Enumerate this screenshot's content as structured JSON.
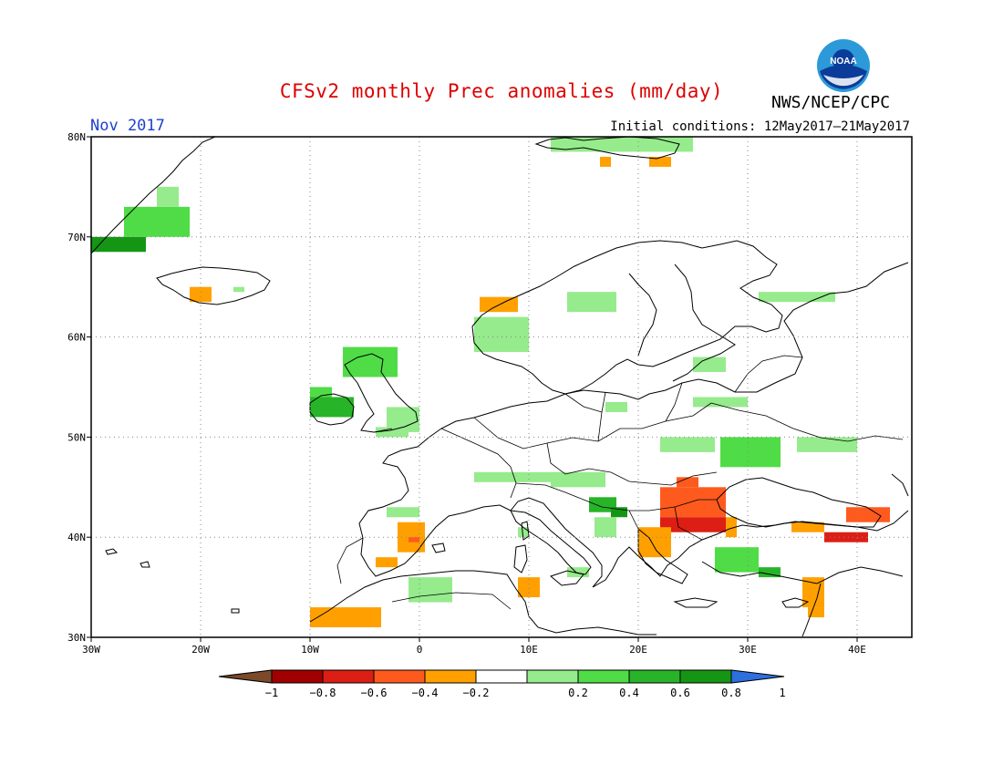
{
  "header": {
    "title": "CFSv2 monthly Prec anomalies (mm/day)",
    "month": "Nov 2017",
    "initial_conditions": "Initial conditions: 12May2017–21May2017",
    "org": "NWS/NCEP/CPC",
    "logo_text": "NOAA"
  },
  "colors": {
    "title": "#dd0000",
    "month": "#1f3fd0",
    "frame": "#000000",
    "coast": "#000000",
    "grid": "#888888"
  },
  "map": {
    "lon_range": [
      -30,
      45
    ],
    "lat_range": [
      30,
      80
    ],
    "lat_ticks": [
      {
        "value": 30,
        "label": "30N"
      },
      {
        "value": 40,
        "label": "40N"
      },
      {
        "value": 50,
        "label": "50N"
      },
      {
        "value": 60,
        "label": "60N"
      },
      {
        "value": 70,
        "label": "70N"
      },
      {
        "value": 80,
        "label": "80N"
      }
    ],
    "lon_ticks": [
      {
        "value": -30,
        "label": "30W"
      },
      {
        "value": -20,
        "label": "20W"
      },
      {
        "value": -10,
        "label": "10W"
      },
      {
        "value": 0,
        "label": "0"
      },
      {
        "value": 10,
        "label": "10E"
      },
      {
        "value": 20,
        "label": "20E"
      },
      {
        "value": 30,
        "label": "30E"
      },
      {
        "value": 40,
        "label": "40E"
      }
    ],
    "grid_dotted": true
  },
  "colorbar": {
    "bins": [
      {
        "from": -1.0,
        "to": -0.8,
        "color": "#a00000"
      },
      {
        "from": -0.8,
        "to": -0.6,
        "color": "#dc1e14"
      },
      {
        "from": -0.6,
        "to": -0.4,
        "color": "#ff5a1e"
      },
      {
        "from": -0.4,
        "to": -0.2,
        "color": "#ffa000"
      },
      {
        "from": -0.2,
        "to": 0.2,
        "color": "#ffffff"
      },
      {
        "from": 0.2,
        "to": 0.4,
        "color": "#96eb8c"
      },
      {
        "from": 0.4,
        "to": 0.6,
        "color": "#50dc46"
      },
      {
        "from": 0.6,
        "to": 0.8,
        "color": "#28b428"
      },
      {
        "from": 0.8,
        "to": 1.0,
        "color": "#149614"
      }
    ],
    "under_color": "#7a4a2a",
    "over_color": "#2e6fe0",
    "tick_labels": [
      "−1",
      "−0.8",
      "−0.6",
      "−0.4",
      "−0.2",
      "0.2",
      "0.4",
      "0.6",
      "0.8",
      "1"
    ]
  },
  "chart_data": {
    "type": "heatmap",
    "title": "CFSv2 monthly Prec anomalies (mm/day)",
    "units": "mm/day",
    "period": "Nov 2017",
    "anomaly_patches": [
      {
        "region": "E Greenland coast",
        "lon": [
          -30,
          -25
        ],
        "lat": [
          68.5,
          70
        ],
        "value": 0.9
      },
      {
        "region": "E Greenland coast",
        "lon": [
          -27,
          -21
        ],
        "lat": [
          70,
          73
        ],
        "value": 0.5
      },
      {
        "region": "E Greenland coast",
        "lon": [
          -24,
          -22
        ],
        "lat": [
          73,
          75
        ],
        "value": 0.3
      },
      {
        "region": "Iceland SW",
        "lon": [
          -21,
          -19
        ],
        "lat": [
          63.5,
          65
        ],
        "value": -0.3
      },
      {
        "region": "Iceland",
        "lon": [
          -17,
          -16
        ],
        "lat": [
          64.5,
          65
        ],
        "value": 0.3
      },
      {
        "region": "Svalbard",
        "lon": [
          12,
          25
        ],
        "lat": [
          78.5,
          80
        ],
        "value": 0.3
      },
      {
        "region": "Svalbard",
        "lon": [
          16.5,
          17.5
        ],
        "lat": [
          77,
          78
        ],
        "value": -0.3
      },
      {
        "region": "Svalbard",
        "lon": [
          21,
          23
        ],
        "lat": [
          77,
          78
        ],
        "value": -0.3
      },
      {
        "region": "W Norway",
        "lon": [
          5.5,
          9
        ],
        "lat": [
          62.5,
          64
        ],
        "value": -0.3
      },
      {
        "region": "W Norway",
        "lon": [
          5,
          10
        ],
        "lat": [
          58.5,
          62
        ],
        "value": 0.3
      },
      {
        "region": "Central Norway",
        "lon": [
          13.5,
          18
        ],
        "lat": [
          62.5,
          64.5
        ],
        "value": 0.3
      },
      {
        "region": "N Russia",
        "lon": [
          31,
          38
        ],
        "lat": [
          63.5,
          64.5
        ],
        "value": 0.3
      },
      {
        "region": "Ireland",
        "lon": [
          -10,
          -6
        ],
        "lat": [
          52,
          54
        ],
        "value": 0.7
      },
      {
        "region": "Ireland",
        "lon": [
          -10,
          -8
        ],
        "lat": [
          54,
          55
        ],
        "value": 0.5
      },
      {
        "region": "Scotland",
        "lon": [
          -7,
          -2
        ],
        "lat": [
          56,
          59
        ],
        "value": 0.4
      },
      {
        "region": "England",
        "lon": [
          -3,
          0
        ],
        "lat": [
          50.5,
          53
        ],
        "value": 0.3
      },
      {
        "region": "France NW",
        "lon": [
          -4,
          -1
        ],
        "lat": [
          50,
          51
        ],
        "value": 0.3
      },
      {
        "region": "Baltic",
        "lon": [
          25,
          28
        ],
        "lat": [
          56.5,
          58
        ],
        "value": 0.3
      },
      {
        "region": "Belarus",
        "lon": [
          25,
          30
        ],
        "lat": [
          53,
          54
        ],
        "value": 0.3
      },
      {
        "region": "Poland/Germany",
        "lon": [
          17,
          19
        ],
        "lat": [
          52.5,
          53.5
        ],
        "value": 0.3
      },
      {
        "region": "Ukraine",
        "lon": [
          22,
          27
        ],
        "lat": [
          48.5,
          50
        ],
        "value": 0.3
      },
      {
        "region": "Ukraine",
        "lon": [
          27.5,
          33
        ],
        "lat": [
          47,
          50
        ],
        "value": 0.4
      },
      {
        "region": "S Russia",
        "lon": [
          34.5,
          40
        ],
        "lat": [
          48.5,
          50
        ],
        "value": 0.3
      },
      {
        "region": "Balkans",
        "lon": [
          12,
          17
        ],
        "lat": [
          45,
          46.5
        ],
        "value": 0.3
      },
      {
        "region": "Adriatic",
        "lon": [
          15.5,
          18
        ],
        "lat": [
          42.5,
          44
        ],
        "value": 0.6
      },
      {
        "region": "Albania",
        "lon": [
          17.5,
          19
        ],
        "lat": [
          42,
          43
        ],
        "value": 0.95
      },
      {
        "region": "Romania/Bulgaria",
        "lon": [
          22,
          28
        ],
        "lat": [
          42,
          45
        ],
        "value": -0.5
      },
      {
        "region": "Romania",
        "lon": [
          23.5,
          25.5
        ],
        "lat": [
          45,
          46
        ],
        "value": -0.5
      },
      {
        "region": "N Greece / Turkey W",
        "lon": [
          22,
          28
        ],
        "lat": [
          40.5,
          42
        ],
        "value": -0.7
      },
      {
        "region": "Greece W",
        "lon": [
          20,
          23
        ],
        "lat": [
          38,
          41
        ],
        "value": -0.3
      },
      {
        "region": "Bosphorus",
        "lon": [
          28,
          29
        ],
        "lat": [
          40,
          42
        ],
        "value": -0.3
      },
      {
        "region": "W Turkey",
        "lon": [
          27,
          31
        ],
        "lat": [
          36.5,
          39
        ],
        "value": 0.5
      },
      {
        "region": "SW Turkey",
        "lon": [
          31,
          33
        ],
        "lat": [
          36,
          37
        ],
        "value": 0.7
      },
      {
        "region": "Black Sea E",
        "lon": [
          39,
          43
        ],
        "lat": [
          41.5,
          43
        ],
        "value": -0.5
      },
      {
        "region": "NE Turkey",
        "lon": [
          37,
          41
        ],
        "lat": [
          39.5,
          40.5
        ],
        "value": -0.7
      },
      {
        "region": "N Turkey",
        "lon": [
          34,
          37
        ],
        "lat": [
          40.5,
          41.5
        ],
        "value": -0.3
      },
      {
        "region": "Levant",
        "lon": [
          35,
          37
        ],
        "lat": [
          33,
          36
        ],
        "value": -0.3
      },
      {
        "region": "Levant",
        "lon": [
          35.5,
          37
        ],
        "lat": [
          32,
          33
        ],
        "value": -0.3
      },
      {
        "region": "E Spain",
        "lon": [
          -2,
          0.5
        ],
        "lat": [
          38.5,
          41.5
        ],
        "value": -0.3
      },
      {
        "region": "E Spain",
        "lon": [
          -1,
          0
        ],
        "lat": [
          39.5,
          40
        ],
        "value": -0.5
      },
      {
        "region": "S Spain",
        "lon": [
          -4,
          -2
        ],
        "lat": [
          37,
          38
        ],
        "value": -0.3
      },
      {
        "region": "Morocco",
        "lon": [
          -10,
          -3.5
        ],
        "lat": [
          31,
          33
        ],
        "value": -0.3
      },
      {
        "region": "Tunisia",
        "lon": [
          9,
          11
        ],
        "lat": [
          34,
          36
        ],
        "value": -0.3
      },
      {
        "region": "Algeria N",
        "lon": [
          -1,
          3
        ],
        "lat": [
          33.5,
          36
        ],
        "value": 0.3
      },
      {
        "region": "Italy",
        "lon": [
          5,
          13
        ],
        "lat": [
          45.5,
          46.5
        ],
        "value": 0.3
      },
      {
        "region": "Sardinia",
        "lon": [
          9,
          10
        ],
        "lat": [
          40,
          41
        ],
        "value": 0.3
      },
      {
        "region": "Sicily",
        "lon": [
          13.5,
          15.5
        ],
        "lat": [
          36,
          37
        ],
        "value": 0.3
      },
      {
        "region": "Iberia N",
        "lon": [
          -3,
          0
        ],
        "lat": [
          42,
          43
        ],
        "value": 0.3
      },
      {
        "region": "Italy E coast",
        "lon": [
          16,
          18
        ],
        "lat": [
          40,
          42
        ],
        "value": 0.3
      }
    ]
  }
}
